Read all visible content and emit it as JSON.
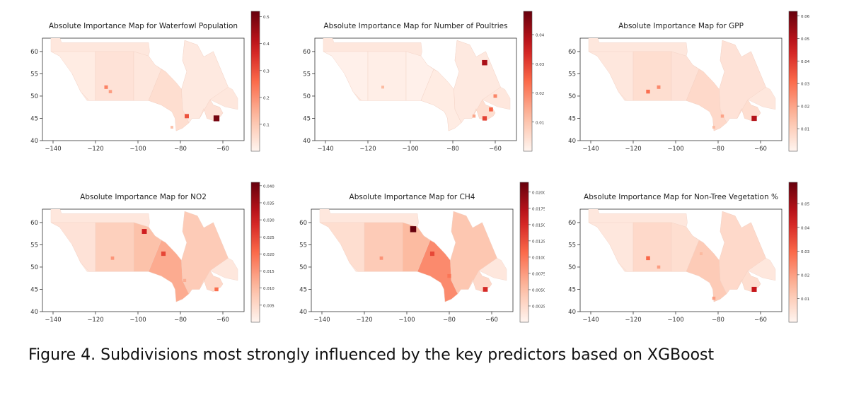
{
  "caption": "Figure 4. Subdivisions most strongly influenced by the key predictors based on XGBoost",
  "chart_data": [
    {
      "type": "heatmap",
      "title": "Absolute Importance Map for Waterfowl Population",
      "xlim": [
        -145,
        -50
      ],
      "ylim": [
        40,
        63
      ],
      "xticks": [
        -140,
        -120,
        -100,
        -80,
        -60
      ],
      "yticks": [
        40,
        45,
        50,
        55,
        60
      ],
      "colorbar_range": [
        0,
        0.52
      ],
      "colorbar_ticks": [
        "0.1",
        "0.2",
        "0.3",
        "0.4",
        "0.5"
      ],
      "colorbar_tick_values": [
        0.1,
        0.2,
        0.3,
        0.4,
        0.5
      ],
      "highlights": [
        {
          "lon": -63,
          "lat": 45,
          "value": 0.5
        },
        {
          "lon": -77,
          "lat": 45.5,
          "value": 0.3
        },
        {
          "lon": -115,
          "lat": 52,
          "value": 0.22
        },
        {
          "lon": -113,
          "lat": 51,
          "value": 0.18
        },
        {
          "lon": -84,
          "lat": 43,
          "value": 0.12
        }
      ]
    },
    {
      "type": "heatmap",
      "title": "Absolute Importance Map for Number of Poultries",
      "xlim": [
        -145,
        -50
      ],
      "ylim": [
        40,
        63
      ],
      "xticks": [
        -140,
        -120,
        -100,
        -80,
        -60
      ],
      "yticks": [
        40,
        45,
        50,
        55,
        60
      ],
      "colorbar_range": [
        0,
        0.048
      ],
      "colorbar_ticks": [
        "0.01",
        "0.02",
        "0.03",
        "0.04"
      ],
      "colorbar_tick_values": [
        0.01,
        0.02,
        0.03,
        0.04
      ],
      "highlights": [
        {
          "lon": -65,
          "lat": 57.5,
          "value": 0.04
        },
        {
          "lon": -65,
          "lat": 45,
          "value": 0.03
        },
        {
          "lon": -62,
          "lat": 47,
          "value": 0.025
        },
        {
          "lon": -60,
          "lat": 50,
          "value": 0.02
        },
        {
          "lon": -70,
          "lat": 45.5,
          "value": 0.015
        },
        {
          "lon": -113,
          "lat": 52,
          "value": 0.012
        }
      ]
    },
    {
      "type": "heatmap",
      "title": "Absolute Importance Map for GPP",
      "xlim": [
        -145,
        -50
      ],
      "ylim": [
        40,
        63
      ],
      "xticks": [
        -140,
        -120,
        -100,
        -80,
        -60
      ],
      "yticks": [
        40,
        45,
        50,
        55,
        60
      ],
      "colorbar_range": [
        0,
        0.062
      ],
      "colorbar_ticks": [
        "0.01",
        "0.02",
        "0.03",
        "0.04",
        "0.05",
        "0.06"
      ],
      "colorbar_tick_values": [
        0.01,
        0.02,
        0.03,
        0.04,
        0.05,
        0.06
      ],
      "highlights": [
        {
          "lon": -63,
          "lat": 45,
          "value": 0.05
        },
        {
          "lon": -113,
          "lat": 51,
          "value": 0.03
        },
        {
          "lon": -108,
          "lat": 52,
          "value": 0.025
        },
        {
          "lon": -78,
          "lat": 45.5,
          "value": 0.02
        },
        {
          "lon": -82,
          "lat": 43,
          "value": 0.015
        }
      ]
    },
    {
      "type": "heatmap",
      "title": "Absolute Importance Map for NO2",
      "xlim": [
        -145,
        -50
      ],
      "ylim": [
        40,
        63
      ],
      "xticks": [
        -140,
        -120,
        -100,
        -80,
        -60
      ],
      "yticks": [
        40,
        45,
        50,
        55,
        60
      ],
      "colorbar_range": [
        0,
        0.041
      ],
      "colorbar_ticks": [
        "0.005",
        "0.010",
        "0.015",
        "0.020",
        "0.025",
        "0.030",
        "0.035",
        "0.040"
      ],
      "colorbar_tick_values": [
        0.005,
        0.01,
        0.015,
        0.02,
        0.025,
        0.03,
        0.035,
        0.04
      ],
      "highlights": [
        {
          "lon": -97,
          "lat": 58,
          "value": 0.03
        },
        {
          "lon": -88,
          "lat": 53,
          "value": 0.025
        },
        {
          "lon": -112,
          "lat": 52,
          "value": 0.015
        },
        {
          "lon": -63,
          "lat": 45,
          "value": 0.02
        },
        {
          "lon": -78,
          "lat": 47,
          "value": 0.012
        }
      ]
    },
    {
      "type": "heatmap",
      "title": "Absolute Importance Map for CH4",
      "xlim": [
        -145,
        -50
      ],
      "ylim": [
        40,
        63
      ],
      "xticks": [
        -140,
        -120,
        -100,
        -80,
        -60
      ],
      "yticks": [
        40,
        45,
        50,
        55,
        60
      ],
      "colorbar_range": [
        0,
        0.0215
      ],
      "colorbar_ticks": [
        "0.0025",
        "0.0050",
        "0.0075",
        "0.0100",
        "0.0125",
        "0.0150",
        "0.0175",
        "0.0200"
      ],
      "colorbar_tick_values": [
        0.0025,
        0.005,
        0.0075,
        0.01,
        0.0125,
        0.015,
        0.0175,
        0.02
      ],
      "highlights": [
        {
          "lon": -97,
          "lat": 58.5,
          "value": 0.0215
        },
        {
          "lon": -88,
          "lat": 53,
          "value": 0.013
        },
        {
          "lon": -80,
          "lat": 48,
          "value": 0.01
        },
        {
          "lon": -112,
          "lat": 52,
          "value": 0.008
        },
        {
          "lon": -63,
          "lat": 45,
          "value": 0.015
        }
      ]
    },
    {
      "type": "heatmap",
      "title": "Absolute Importance Map for Non-Tree Vegetation %",
      "xlim": [
        -145,
        -50
      ],
      "ylim": [
        40,
        63
      ],
      "xticks": [
        -140,
        -120,
        -100,
        -80,
        -60
      ],
      "yticks": [
        40,
        45,
        50,
        55,
        60
      ],
      "colorbar_range": [
        0,
        0.059
      ],
      "colorbar_ticks": [
        "0.01",
        "0.02",
        "0.03",
        "0.04",
        "0.05"
      ],
      "colorbar_tick_values": [
        0.01,
        0.02,
        0.03,
        0.04,
        0.05
      ],
      "highlights": [
        {
          "lon": -63,
          "lat": 45,
          "value": 0.045
        },
        {
          "lon": -113,
          "lat": 52,
          "value": 0.03
        },
        {
          "lon": -108,
          "lat": 50,
          "value": 0.02
        },
        {
          "lon": -88,
          "lat": 53,
          "value": 0.015
        },
        {
          "lon": -82,
          "lat": 43,
          "value": 0.02
        }
      ]
    }
  ]
}
